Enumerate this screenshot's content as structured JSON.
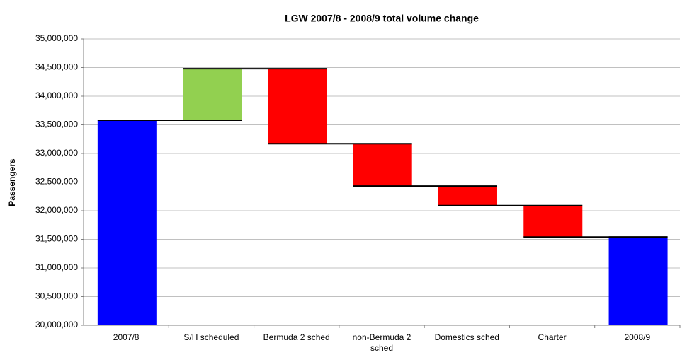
{
  "chart_data": {
    "type": "waterfall",
    "title": "LGW 2007/8 - 2008/9 total volume change",
    "y_label": "Passengers",
    "categories": [
      "2007/8",
      "S/H scheduled",
      "Bermuda 2 sched",
      "non-Bermuda 2 sched",
      "Domestics sched",
      "Charter",
      "2008/9"
    ],
    "values": [
      33580000,
      900000,
      -1310000,
      -740000,
      -340000,
      -550000,
      31540000
    ],
    "is_total": [
      true,
      false,
      false,
      false,
      false,
      false,
      true
    ],
    "colors": [
      "#0000ff",
      "#92d050",
      "#ff0000",
      "#ff0000",
      "#ff0000",
      "#ff0000",
      "#0000ff"
    ],
    "ylim": [
      30000000,
      35000000
    ],
    "yticks": [
      {
        "value": 30000000,
        "label": "30,000,000"
      },
      {
        "value": 30500000,
        "label": "30,500,000"
      },
      {
        "value": 31000000,
        "label": "31,000,000"
      },
      {
        "value": 31500000,
        "label": "31,500,000"
      },
      {
        "value": 32000000,
        "label": "32,000,000"
      },
      {
        "value": 32500000,
        "label": "32,500,000"
      },
      {
        "value": 33000000,
        "label": "33,000,000"
      },
      {
        "value": 33500000,
        "label": "33,500,000"
      },
      {
        "value": 34000000,
        "label": "34,000,000"
      },
      {
        "value": 34500000,
        "label": "34,500,000"
      },
      {
        "value": 35000000,
        "label": "35,000,000"
      }
    ],
    "grid": true
  }
}
